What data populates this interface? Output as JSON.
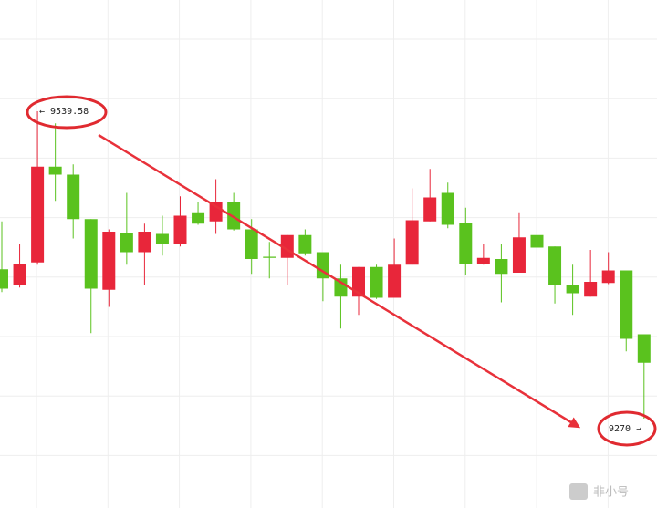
{
  "chart_data": {
    "type": "candlestick",
    "open": [
      9401,
      9387,
      9407,
      9491,
      9484,
      9445,
      9383,
      9433,
      9416,
      9432,
      9423,
      9451,
      9443,
      9460,
      9436,
      9412,
      9411,
      9431,
      9416,
      9393,
      9377,
      9403,
      9376,
      9405,
      9443,
      9468,
      9442,
      9406,
      9410,
      9398,
      9431,
      9421,
      9387,
      9377,
      9389,
      9400,
      9344
    ],
    "high": [
      9443,
      9423,
      9539.58,
      9529,
      9493,
      9445,
      9436,
      9468,
      9441,
      9448,
      9465,
      9460,
      9480,
      9468,
      9445,
      9425,
      9431,
      9436,
      9416,
      9405,
      9403,
      9405,
      9428,
      9472,
      9489,
      9477,
      9455,
      9423,
      9423,
      9451,
      9468,
      9421,
      9405,
      9418,
      9416,
      9400,
      9344
    ],
    "low": [
      9381,
      9385,
      9405,
      9461,
      9428,
      9345,
      9368,
      9405,
      9387,
      9413,
      9421,
      9440,
      9432,
      9435,
      9397,
      9393,
      9387,
      9413,
      9373,
      9349,
      9361,
      9375,
      9376,
      9405,
      9443,
      9437,
      9396,
      9405,
      9372,
      9398,
      9417,
      9371,
      9361,
      9377,
      9388,
      9329,
      9270
    ],
    "close": [
      9384,
      9406,
      9491,
      9484,
      9445,
      9384,
      9434,
      9416,
      9434,
      9423,
      9448,
      9441,
      9460,
      9436,
      9410,
      9411,
      9431,
      9415,
      9393,
      9377,
      9403,
      9376,
      9405,
      9444,
      9464,
      9440,
      9406,
      9411,
      9397,
      9429,
      9420,
      9387,
      9380,
      9390,
      9400,
      9340,
      9319
    ],
    "up_color": "#e8263a",
    "down_color": "#5ac21e",
    "ylim": [
      9191.6,
      9637.2
    ],
    "grid": true,
    "annotations": [
      {
        "text": "← 9539.58"
      },
      {
        "text": "9270 →"
      }
    ],
    "watermark": "非小号"
  }
}
